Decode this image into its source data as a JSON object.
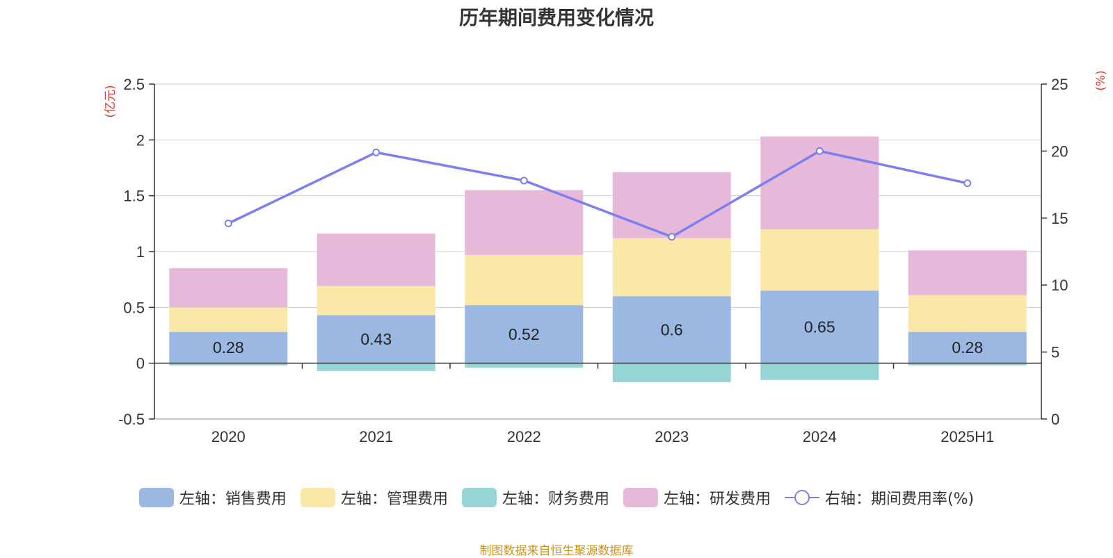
{
  "title": "历年期间费用变化情况",
  "source_note": "制图数据来自恒生聚源数据库",
  "colors": {
    "sales": "#9bb8e3",
    "admin": "#f9e8a8",
    "finance": "#96d5d5",
    "rd": "#e6b8d9",
    "rate_line": "#7b7ff0",
    "axis_unit": "#e8332a",
    "grid": "#cccccc",
    "text": "#333333"
  },
  "chart_data": {
    "type": "bar",
    "stacked": true,
    "categories": [
      "2020",
      "2021",
      "2022",
      "2023",
      "2024",
      "2025H1"
    ],
    "left_axis": {
      "unit_label": "(亿元)",
      "ylim": [
        -0.5,
        2.5
      ],
      "ticks": [
        "-0.5",
        "0",
        "0.5",
        "1",
        "1.5",
        "2",
        "2.5"
      ]
    },
    "right_axis": {
      "unit_label": "(%)",
      "ylim": [
        0,
        25
      ],
      "ticks": [
        "0",
        "5",
        "10",
        "15",
        "20",
        "25"
      ]
    },
    "grid": true,
    "legend_position": "bottom",
    "series": [
      {
        "key": "sales",
        "name": "左轴：销售费用",
        "axis": "left",
        "type": "bar",
        "values": [
          0.28,
          0.43,
          0.52,
          0.6,
          0.65,
          0.28
        ],
        "labels": [
          "0.28",
          "0.43",
          "0.52",
          "0.6",
          "0.65",
          "0.28"
        ]
      },
      {
        "key": "admin",
        "name": "左轴：管理费用",
        "axis": "left",
        "type": "bar",
        "values": [
          0.22,
          0.26,
          0.45,
          0.52,
          0.55,
          0.33
        ]
      },
      {
        "key": "finance",
        "name": "左轴：财务费用",
        "axis": "left",
        "type": "bar",
        "values": [
          -0.02,
          -0.07,
          -0.04,
          -0.17,
          -0.15,
          -0.02
        ]
      },
      {
        "key": "rd",
        "name": "左轴：研发费用",
        "axis": "left",
        "type": "bar",
        "values": [
          0.35,
          0.47,
          0.58,
          0.59,
          0.83,
          0.4
        ]
      },
      {
        "key": "rate",
        "name": "右轴：期间费用率(%)",
        "axis": "right",
        "type": "line",
        "values": [
          14.6,
          19.9,
          17.8,
          13.6,
          20.0,
          17.6
        ]
      }
    ]
  }
}
